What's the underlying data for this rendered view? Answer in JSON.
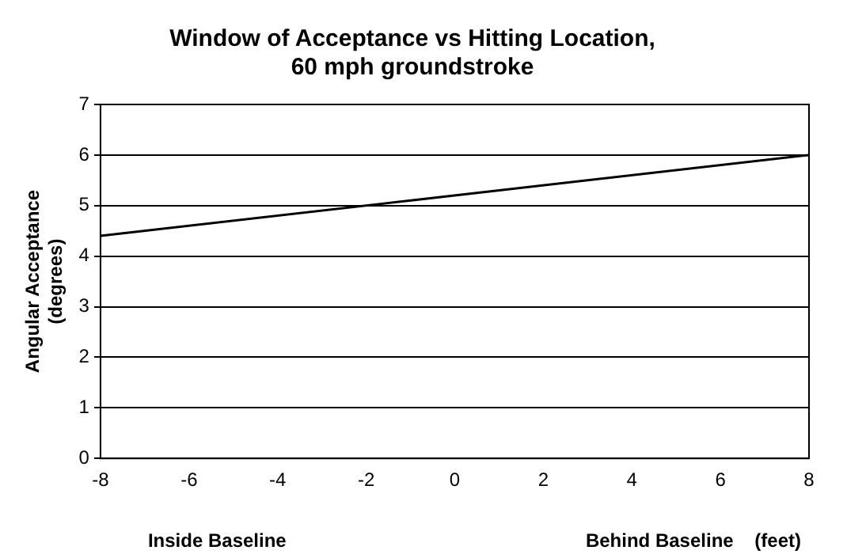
{
  "chart_data": {
    "type": "line",
    "title": "Window of Acceptance vs Hitting Location,\n60 mph groundstroke",
    "ylabel": "Angular Acceptance\n(degrees)",
    "annotations": [
      "Inside Baseline",
      "Behind Baseline    (feet)"
    ],
    "x": [
      -8,
      8
    ],
    "series": [
      {
        "color": "#000000",
        "values": [
          4.4,
          6.0
        ]
      }
    ],
    "xlim": [
      -8,
      8
    ],
    "xticks": [
      -8,
      -6,
      -4,
      -2,
      0,
      2,
      4,
      6,
      8
    ],
    "ylim": [
      0,
      7
    ],
    "yticks": [
      0,
      1,
      2,
      3,
      4,
      5,
      6,
      7
    ],
    "grid": "y",
    "legend": false,
    "marker": "none",
    "line_style": "solid"
  }
}
